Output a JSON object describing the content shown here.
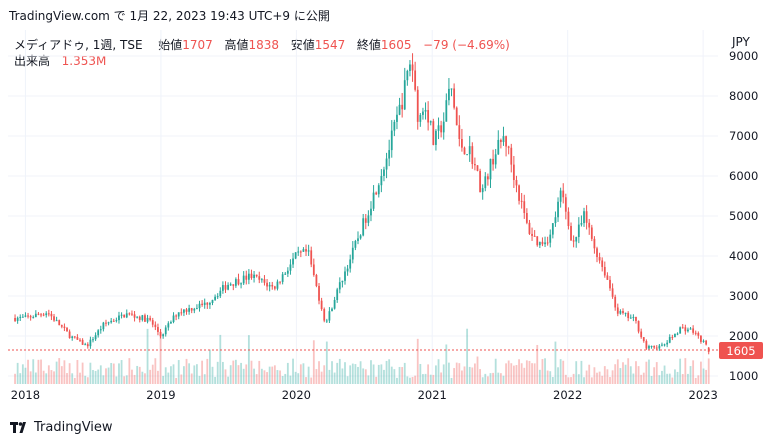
{
  "header": {
    "source_line": "TradingView.com で 1月 22, 2023 19:43 UTC+9 に公開"
  },
  "legend": {
    "symbol": "メディアドゥ, 1週, TSE",
    "open_label": "始値",
    "open_value": "1707",
    "high_label": "高値",
    "high_value": "1838",
    "low_label": "安値",
    "low_value": "1547",
    "close_label": "終値",
    "close_value": "1605",
    "change": "−79 (−4.69%)",
    "volume_label": "出来高",
    "volume_value": "1.353M"
  },
  "footer": {
    "brand": "TradingView",
    "logo_icon": "tradingview-logo-icon"
  },
  "colors": {
    "up": "#26a69a",
    "down": "#ef5350",
    "grid": "#f0f3fa",
    "text": "#131722"
  },
  "chart_data": {
    "type": "candlestick",
    "currency": "JPY",
    "price_axis_ticks": [
      "9000",
      "8000",
      "7000",
      "6000",
      "5000",
      "4000",
      "3000",
      "2000",
      "1000"
    ],
    "time_axis_ticks": [
      "2018",
      "2019",
      "2020",
      "2021",
      "2022",
      "2023"
    ],
    "last_price_label": "1605",
    "ylim": [
      800,
      9400
    ],
    "grid": true,
    "anchors": [
      [
        "2018-01-01",
        2450
      ],
      [
        "2018-03-01",
        2600
      ],
      [
        "2018-05-01",
        2000
      ],
      [
        "2018-06-15",
        1750
      ],
      [
        "2018-08-01",
        2300
      ],
      [
        "2018-10-01",
        2550
      ],
      [
        "2018-12-01",
        2400
      ],
      [
        "2019-01-01",
        2000
      ],
      [
        "2019-02-15",
        2600
      ],
      [
        "2019-05-01",
        2800
      ],
      [
        "2019-07-01",
        3300
      ],
      [
        "2019-09-01",
        3500
      ],
      [
        "2019-11-01",
        3200
      ],
      [
        "2020-01-01",
        4000
      ],
      [
        "2020-02-01",
        4100
      ],
      [
        "2020-03-01",
        3000
      ],
      [
        "2020-03-20",
        2300
      ],
      [
        "2020-04-15",
        3000
      ],
      [
        "2020-06-01",
        4100
      ],
      [
        "2020-07-15",
        5200
      ],
      [
        "2020-09-01",
        6500
      ],
      [
        "2020-10-15",
        8000
      ],
      [
        "2020-11-05",
        9000
      ],
      [
        "2020-11-25",
        7400
      ],
      [
        "2020-12-15",
        7800
      ],
      [
        "2021-01-05",
        6800
      ],
      [
        "2021-02-01",
        7400
      ],
      [
        "2021-02-20",
        8300
      ],
      [
        "2021-03-15",
        6800
      ],
      [
        "2021-04-15",
        6600
      ],
      [
        "2021-05-15",
        5600
      ],
      [
        "2021-06-15",
        6500
      ],
      [
        "2021-07-15",
        7000
      ],
      [
        "2021-08-15",
        5800
      ],
      [
        "2021-09-15",
        4700
      ],
      [
        "2021-10-15",
        4300
      ],
      [
        "2021-11-15",
        4500
      ],
      [
        "2021-12-15",
        5600
      ],
      [
        "2022-01-15",
        4300
      ],
      [
        "2022-02-15",
        5000
      ],
      [
        "2022-03-15",
        4200
      ],
      [
        "2022-04-15",
        3500
      ],
      [
        "2022-05-15",
        2600
      ],
      [
        "2022-07-01",
        2400
      ],
      [
        "2022-08-01",
        1700
      ],
      [
        "2022-09-15",
        1750
      ],
      [
        "2022-11-01",
        2200
      ],
      [
        "2022-12-01",
        2150
      ],
      [
        "2023-01-01",
        1850
      ],
      [
        "2023-01-22",
        1605
      ]
    ],
    "volume_max": "1.353M"
  }
}
